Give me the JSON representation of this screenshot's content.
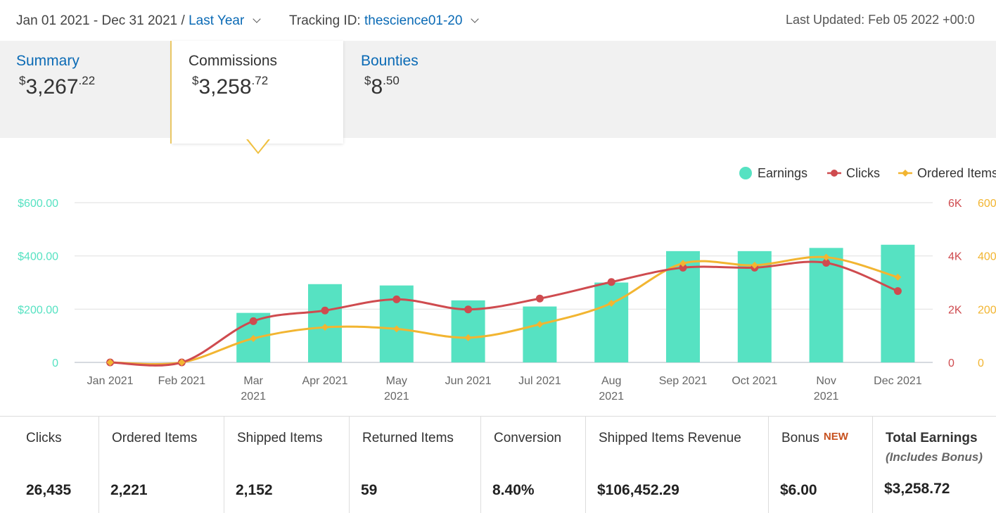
{
  "header": {
    "date_range": "Jan 01 2021 - Dec 31 2021 /",
    "range_label": "Last Year",
    "tracking_label": "Tracking ID:",
    "tracking_id": "thescience01-20",
    "last_updated": "Last Updated: Feb 05 2022 +00:0"
  },
  "tabs": [
    {
      "label": "Summary",
      "amount_currency": "$",
      "amount_whole": "3,267",
      "amount_cents": ".22"
    },
    {
      "label": "Commissions",
      "amount_currency": "$",
      "amount_whole": "3,258",
      "amount_cents": ".72"
    },
    {
      "label": "Bounties",
      "amount_currency": "$",
      "amount_whole": "8",
      "amount_cents": ".50"
    }
  ],
  "colors": {
    "earnings": "#56e2c2",
    "clicks": "#cf4b4f",
    "ordered_items": "#f2b531",
    "link": "#0a6ab5",
    "new_badge": "#c7511f"
  },
  "chart_data": {
    "type": "bar",
    "legend": [
      "Earnings",
      "Clicks",
      "Ordered Items"
    ],
    "legend_position": "top-right",
    "categories": [
      "Jan 2021",
      "Feb 2021",
      "Mar 2021",
      "Apr 2021",
      "May 2021",
      "Jun 2021",
      "Jul 2021",
      "Aug 2021",
      "Sep 2021",
      "Oct 2021",
      "Nov 2021",
      "Dec 2021"
    ],
    "category_labels": [
      [
        "Jan 2021"
      ],
      [
        "Feb 2021"
      ],
      [
        "Mar",
        "2021"
      ],
      [
        "Apr 2021"
      ],
      [
        "May",
        "2021"
      ],
      [
        "Jun 2021"
      ],
      [
        "Jul 2021"
      ],
      [
        "Aug",
        "2021"
      ],
      [
        "Sep 2021"
      ],
      [
        "Oct 2021"
      ],
      [
        "Nov",
        "2021"
      ],
      [
        "Dec 2021"
      ]
    ],
    "series": [
      {
        "name": "Earnings",
        "type": "bar",
        "axis": "left",
        "values": [
          0,
          0,
          186,
          294,
          289,
          233,
          210,
          300,
          418,
          418,
          430,
          442
        ]
      },
      {
        "name": "Clicks",
        "type": "line",
        "axis": "right1",
        "values": [
          0,
          0,
          1550,
          1950,
          2370,
          1990,
          2400,
          3020,
          3560,
          3560,
          3740,
          2680
        ]
      },
      {
        "name": "Ordered Items",
        "type": "line",
        "axis": "right2",
        "values": [
          0,
          0,
          90,
          132,
          126,
          93,
          143,
          222,
          372,
          365,
          395,
          320
        ]
      }
    ],
    "y_left": {
      "ticks": [
        "0",
        "$200.00",
        "$400.00",
        "$600.00"
      ],
      "range": [
        0,
        600
      ]
    },
    "y_right1": {
      "ticks": [
        "0",
        "2K",
        "4K",
        "6K"
      ],
      "range": [
        0,
        6000
      ]
    },
    "y_right2": {
      "ticks": [
        "0",
        "200",
        "400",
        "600"
      ],
      "range": [
        0,
        600
      ]
    },
    "grid": true
  },
  "stats": [
    {
      "label": "Clicks",
      "value": "26,435"
    },
    {
      "label": "Ordered Items",
      "value": "2,221"
    },
    {
      "label": "Shipped Items",
      "value": "2,152"
    },
    {
      "label": "Returned Items",
      "value": "59"
    },
    {
      "label": "Conversion",
      "value": "8.40%"
    },
    {
      "label": "Shipped Items Revenue",
      "value": "$106,452.29"
    },
    {
      "label": "Bonus",
      "badge": "NEW",
      "value": "$6.00"
    },
    {
      "label": "Total Earnings",
      "sublabel": "(Includes Bonus)",
      "value": "$3,258.72"
    }
  ]
}
